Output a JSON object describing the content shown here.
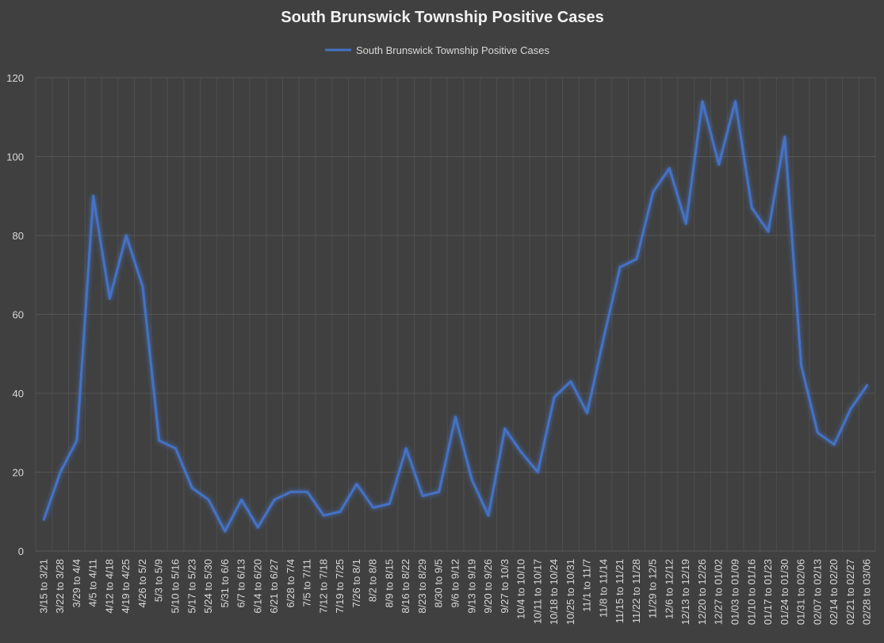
{
  "chart_data": {
    "type": "line",
    "title": "South Brunswick Township Positive Cases",
    "xlabel": "",
    "ylabel": "",
    "ylim": [
      0,
      120
    ],
    "yticks": [
      0,
      20,
      40,
      60,
      80,
      100,
      120
    ],
    "grid": true,
    "legend_position": "top-center",
    "line_color": "#4472c4",
    "categories": [
      "3/15 to 3/21",
      "3/22 to 3/28",
      "3/29 to 4/4",
      "4/5 to 4/11",
      "4/12 to 4/18",
      "4/19 to 4/25",
      "4/26 to 5/2",
      "5/3 to 5/9",
      "5/10 to 5/16",
      "5/17 to 5/23",
      "5/24 to 5/30",
      "5/31 to 6/6",
      "6/7 to 6/13",
      "6/14 to 6/20",
      "6/21 to 6/27",
      "6/28 to 7/4",
      "7/5 to 7/11",
      "7/12 to 7/18",
      "7/19 to 7/25",
      "7/26 to 8/1",
      "8/2 to 8/8",
      "8/9 to 8/15",
      "8/16 to 8/22",
      "8/23 to 8/29",
      "8/30 to 9/5",
      "9/6 to 9/12",
      "9/13 to 9/19",
      "9/20 to 9/26",
      "9/27 to 10/3",
      "10/4 to 10/10",
      "10/11 to 10/17",
      "10/18 to 10/24",
      "10/25 to 10/31",
      "11/1 to 11/7",
      "11/8 to 11/14",
      "11/15 to 11/21",
      "11/22 to 11/28",
      "11/29 to 12/5",
      "12/6 to 12/12",
      "12/13 to 12/19",
      "12/20 to 12/26",
      "12/27 to 01/02",
      "01/03 to 01/09",
      "01/10 to 01/16",
      "01/17 to 01/23",
      "01/24 to 01/30",
      "01/31 to 02/06",
      "02/07 to 02/13",
      "02/14 to 02/20",
      "02/21 to 02/27",
      "02/28 to 03/06"
    ],
    "series": [
      {
        "name": "South Brunswick Township Positive Cases",
        "values": [
          8,
          20,
          28,
          90,
          64,
          80,
          67,
          28,
          26,
          16,
          13,
          5,
          13,
          6,
          13,
          15,
          15,
          9,
          10,
          17,
          11,
          12,
          26,
          14,
          15,
          34,
          18,
          9,
          31,
          25,
          20,
          39,
          43,
          35,
          54,
          72,
          74,
          91,
          97,
          83,
          114,
          98,
          114,
          87,
          81,
          105,
          47,
          30,
          27,
          36,
          42
        ]
      }
    ]
  }
}
